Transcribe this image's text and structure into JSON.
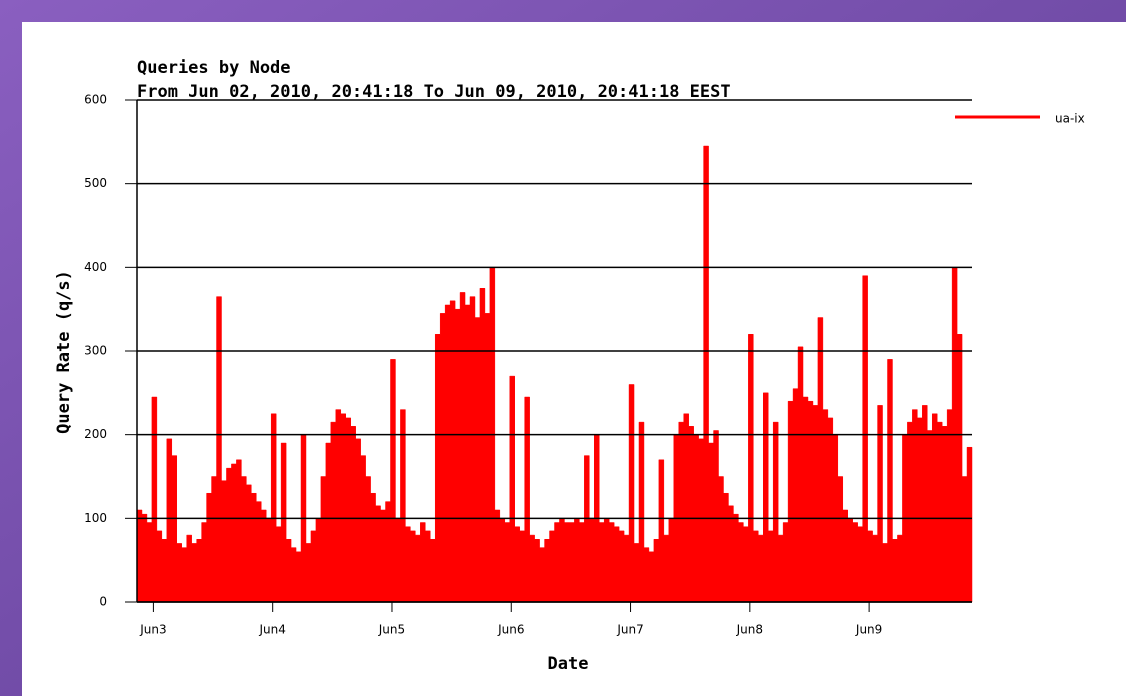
{
  "chart_data": {
    "type": "area",
    "title": "Queries by Node",
    "subtitle": "From Jun 02, 2010, 20:41:18 To Jun 09, 2010, 20:41:18 EEST",
    "xlabel": "Date",
    "ylabel": "Query Rate (q/s)",
    "series": [
      {
        "name": "ua-ix",
        "color": "#ff0000",
        "values": [
          110,
          105,
          95,
          245,
          85,
          75,
          195,
          175,
          70,
          65,
          80,
          70,
          75,
          95,
          130,
          150,
          365,
          145,
          160,
          165,
          170,
          150,
          140,
          130,
          120,
          110,
          100,
          225,
          90,
          190,
          75,
          65,
          60,
          200,
          70,
          85,
          100,
          150,
          190,
          215,
          230,
          225,
          220,
          210,
          195,
          175,
          150,
          130,
          115,
          110,
          120,
          290,
          100,
          230,
          90,
          85,
          80,
          95,
          85,
          75,
          320,
          345,
          355,
          360,
          350,
          370,
          355,
          365,
          340,
          375,
          345,
          400,
          110,
          100,
          95,
          270,
          90,
          85,
          245,
          80,
          75,
          65,
          75,
          85,
          95,
          100,
          95,
          95,
          100,
          95,
          175,
          100,
          200,
          95,
          100,
          95,
          90,
          85,
          80,
          260,
          70,
          215,
          65,
          60,
          75,
          170,
          80,
          100,
          200,
          215,
          225,
          210,
          200,
          195,
          545,
          190,
          205,
          150,
          130,
          115,
          105,
          95,
          90,
          320,
          85,
          80,
          250,
          85,
          215,
          80,
          95,
          240,
          255,
          305,
          245,
          240,
          235,
          340,
          230,
          220,
          200,
          150,
          110,
          100,
          95,
          90,
          390,
          85,
          80,
          235,
          70,
          290,
          75,
          80,
          200,
          215,
          230,
          220,
          235,
          205,
          225,
          215,
          210,
          230,
          400,
          320,
          150,
          185
        ]
      }
    ],
    "xlim": [
      0,
      168
    ],
    "xticks": [
      {
        "value": 3.3,
        "label": "Jun3"
      },
      {
        "value": 27.3,
        "label": "Jun4"
      },
      {
        "value": 51.3,
        "label": "Jun5"
      },
      {
        "value": 75.3,
        "label": "Jun6"
      },
      {
        "value": 99.3,
        "label": "Jun7"
      },
      {
        "value": 123.3,
        "label": "Jun8"
      },
      {
        "value": 147.3,
        "label": "Jun9"
      }
    ],
    "ylim": [
      0,
      600
    ],
    "yticks": [
      0,
      100,
      200,
      300,
      400,
      500,
      600
    ],
    "grid": true,
    "legend": "upper right"
  }
}
